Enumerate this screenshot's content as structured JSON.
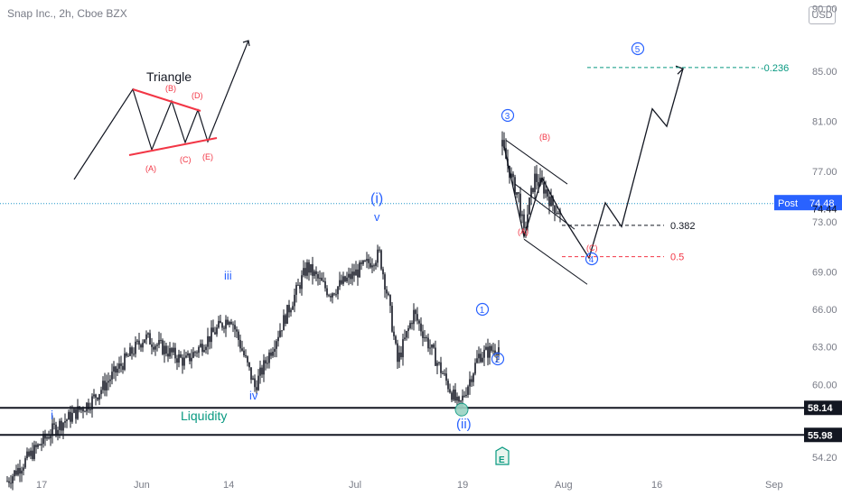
{
  "header": {
    "symbol_title": "Snap Inc., 2h, Cboe BZX",
    "currency": "USD"
  },
  "colors": {
    "candle": "#131722",
    "blue_label": "#2962ff",
    "red_label": "#f23645",
    "green_level": "#089981",
    "dotted_line": "#2196c8",
    "post_badge": "#2962ff",
    "marker_fill": "#9bd3c3"
  },
  "chart_data": {
    "type": "candlestick",
    "title": "Snap Inc., 2h, Cboe BZX",
    "ylim": [
      51.5,
      90.5
    ],
    "y_ticks": [
      "90.00",
      "85.00",
      "81.00",
      "77.00",
      "73.00",
      "69.00",
      "66.00",
      "63.00",
      "60.00",
      "54.20"
    ],
    "x_ticks": [
      "17",
      "Jun",
      "14",
      "Jul",
      "19",
      "Aug",
      "16",
      "Sep"
    ],
    "price_badges": {
      "post": {
        "label": "Post",
        "value": "74.48"
      },
      "level_current": "74.44",
      "support_1": "58.14",
      "support_2": "55.98"
    },
    "series": [
      {
        "name": "Price path (approx.)",
        "points": [
          [
            "17",
            52.3
          ],
          [
            "17",
            56.5
          ],
          [
            "17",
            58.6
          ],
          [
            "Jun",
            63.8
          ],
          [
            "Jun",
            61.8
          ],
          [
            "14",
            65.5
          ],
          [
            "14",
            59.8
          ],
          [
            "Jul",
            69.4
          ],
          [
            "Jul",
            67.3
          ],
          [
            "Jul",
            70.4
          ],
          [
            "Jul",
            66.7
          ],
          [
            "Jul",
            61.8
          ],
          [
            "Jul",
            65.7
          ],
          [
            "19",
            58.14
          ],
          [
            "19",
            62.3
          ],
          [
            "19",
            63.0
          ]
        ]
      }
    ],
    "projection": [
      [
        "19",
        79.0
      ],
      [
        "19",
        71.8
      ],
      [
        "19",
        76.5
      ],
      [
        "Aug",
        73.5
      ],
      [
        "Aug",
        70.1
      ],
      [
        "Aug",
        72.6
      ],
      [
        "16",
        82.0
      ],
      [
        "16",
        81.5
      ],
      [
        "16",
        85.2
      ]
    ],
    "annotations": {
      "wave_labels": [
        "i",
        "iii",
        "iv",
        "v",
        "(i)",
        "(ii)"
      ],
      "circled_labels": [
        "1",
        "2",
        "3",
        "4",
        "5"
      ],
      "corrective_labels": [
        "(A)",
        "(B)",
        "(C)"
      ],
      "triangle_title": "Triangle",
      "triangle_labels": [
        "(A)",
        "(B)",
        "(C)",
        "(D)",
        "(E)"
      ],
      "liquidity": "Liquidity",
      "fib_levels": [
        {
          "label": "-0.236",
          "value": 85.3
        },
        {
          "label": "0.382",
          "value": 72.7
        },
        {
          "label": "0.5",
          "value": 70.2
        }
      ],
      "earnings_marker": "E"
    }
  }
}
